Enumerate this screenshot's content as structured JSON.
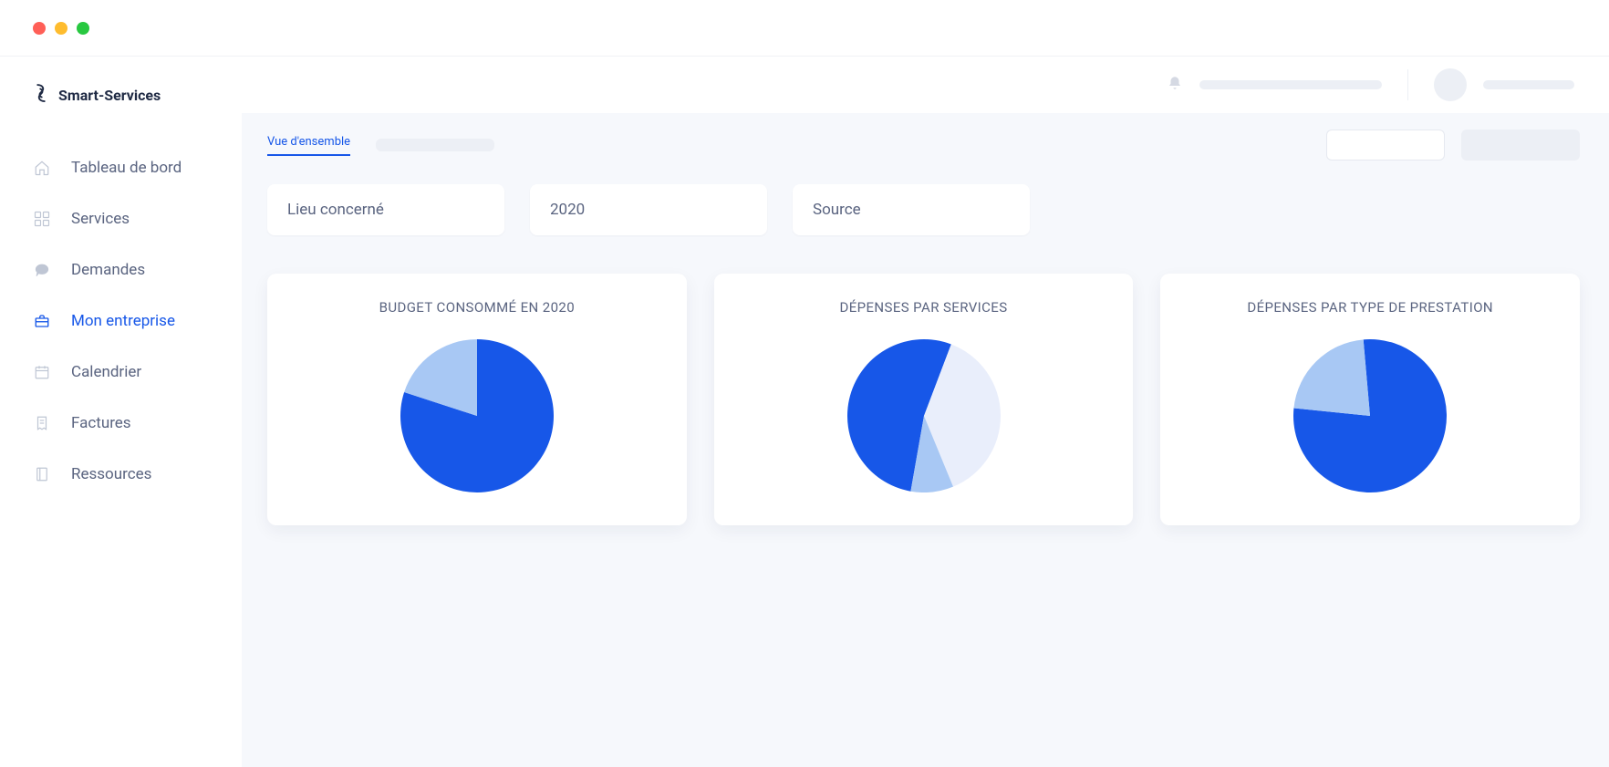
{
  "brand": {
    "name": "Smart-Services"
  },
  "sidebar": {
    "items": [
      {
        "label": "Tableau de bord",
        "icon": "home-icon",
        "active": false
      },
      {
        "label": "Services",
        "icon": "grid-icon",
        "active": false
      },
      {
        "label": "Demandes",
        "icon": "chat-icon",
        "active": false
      },
      {
        "label": "Mon entreprise",
        "icon": "briefcase-icon",
        "active": true
      },
      {
        "label": "Calendrier",
        "icon": "calendar-icon",
        "active": false
      },
      {
        "label": "Factures",
        "icon": "receipt-icon",
        "active": false
      },
      {
        "label": "Ressources",
        "icon": "book-icon",
        "active": false
      }
    ]
  },
  "tabs": {
    "active_label": "Vue d'ensemble"
  },
  "filters": {
    "location": {
      "label": "Lieu concerné"
    },
    "year": {
      "label": "2020"
    },
    "source": {
      "label": "Source"
    }
  },
  "cards": {
    "budget": {
      "title": "BUDGET CONSOMMÉ EN 2020",
      "chart": {
        "type": "pie",
        "radius": 84,
        "values": [
          80,
          20
        ],
        "colors": [
          "#1757e8",
          "#a8c8f4"
        ],
        "start_angle": -90,
        "background_color": "#ffffff"
      }
    },
    "by_service": {
      "title": "DÉPENSES PAR SERVICES",
      "chart": {
        "type": "pie",
        "radius": 84,
        "values": [
          53,
          38,
          9
        ],
        "colors": [
          "#1757e8",
          "#e9eefb",
          "#a8c8f4"
        ],
        "start_angle": 100,
        "background_color": "#ffffff"
      }
    },
    "by_type": {
      "title": "DÉPENSES PAR TYPE DE PRESTATION",
      "chart": {
        "type": "pie",
        "radius": 84,
        "values": [
          78,
          22
        ],
        "colors": [
          "#1757e8",
          "#a8c8f4"
        ],
        "start_angle": -95,
        "background_color": "#ffffff"
      }
    }
  },
  "colors": {
    "accent": "#1757e8",
    "text": "#1f2a44",
    "muted": "#5a6480",
    "icon_muted": "#bfc6d4",
    "content_bg": "#f6f8fc",
    "card_bg": "#ffffff",
    "skeleton": "#eceff5"
  }
}
